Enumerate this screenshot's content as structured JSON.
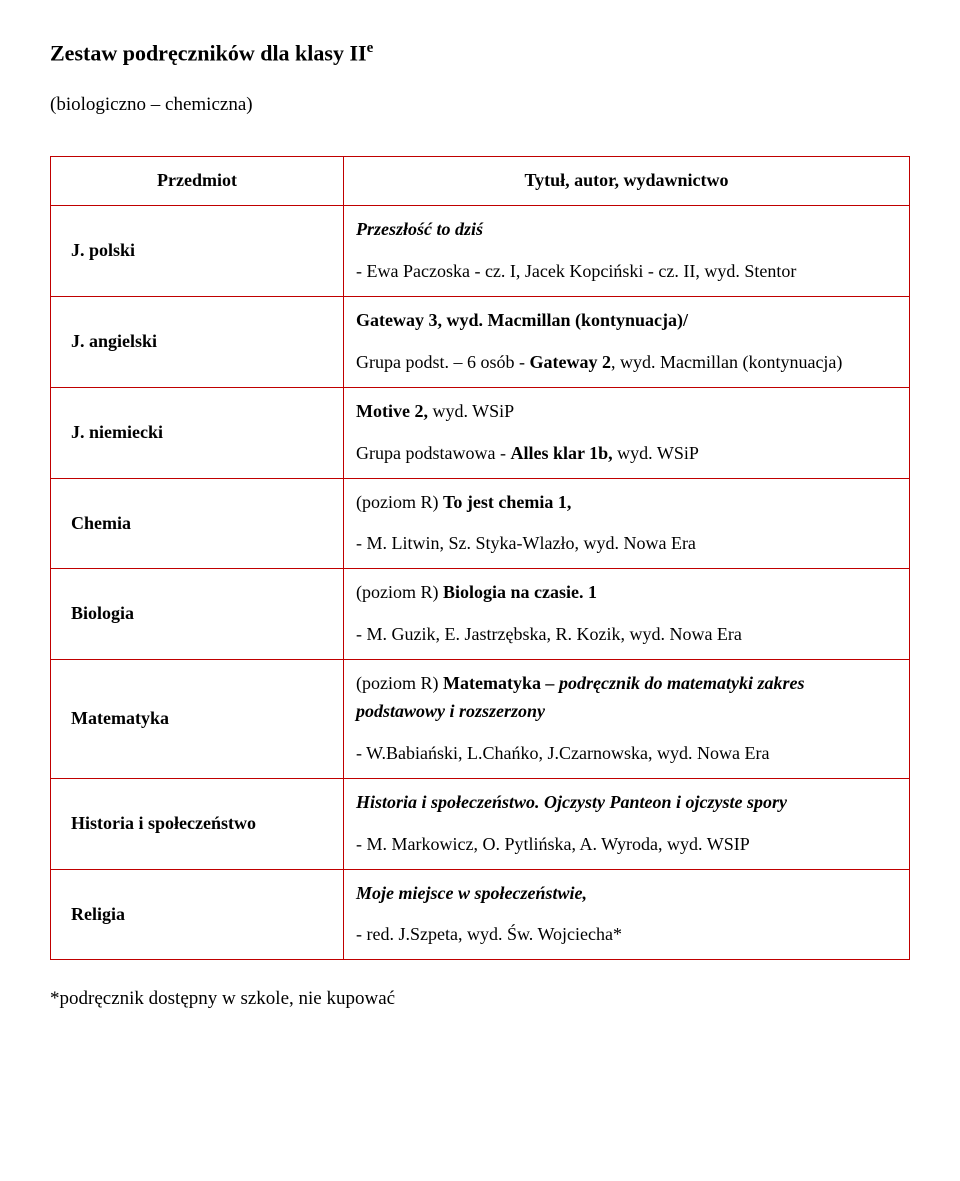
{
  "title_main": "Zestaw podręczników dla klasy II",
  "title_sup": "e",
  "subtitle": "(biologiczno – chemiczna)",
  "header_subject": "Przedmiot",
  "header_detail": "Tytuł, autor, wydawnictwo",
  "rows": [
    {
      "subject": "J. polski",
      "line1_bi": "Przeszłość to dziś",
      "line2": "- Ewa Paczoska - cz. I, Jacek Kopciński - cz. II, wyd. Stentor"
    },
    {
      "subject": "J. angielski",
      "line1_b": "Gateway 3, wyd. Macmillan (kontynuacja)/",
      "line2_pre": "Grupa podst. – 6 osób - ",
      "line2_b": "Gateway 2",
      "line2_post": ", wyd. Macmillan (kontynuacja)"
    },
    {
      "subject": "J. niemiecki",
      "line1_b": "Motive 2,",
      "line1_post": " wyd. WSiP",
      "line2_pre": "Grupa podstawowa - ",
      "line2_b": "Alles klar 1b,",
      "line2_post": " wyd. WSiP"
    },
    {
      "subject": "Chemia",
      "line1_pre": "(poziom R) ",
      "line1_b": "To jest chemia 1,",
      "line2": "- M. Litwin, Sz. Styka-Wlazło, wyd. Nowa Era"
    },
    {
      "subject": "Biologia",
      "line1_pre": "(poziom R) ",
      "line1_b": "Biologia na czasie. 1",
      "line2": "- M. Guzik, E. Jastrzębska, R. Kozik, wyd. Nowa Era"
    },
    {
      "subject": "Matematyka",
      "line1_pre": "(poziom R) ",
      "line1_b": "Matematyka",
      "line1_bi": " – podręcznik do matematyki zakres podstawowy i rozszerzony",
      "line2": "- W.Babiański, L.Chańko, J.Czarnowska, wyd. Nowa Era"
    },
    {
      "subject": "Historia i społeczeństwo",
      "line1_bi": "Historia i społeczeństwo. Ojczysty Panteon i ojczyste spory",
      "line2": "- M. Markowicz, O. Pytlińska, A. Wyroda, wyd. WSIP"
    },
    {
      "subject": "Religia",
      "line1_bi": "Moje miejsce w społeczeństwie,",
      "line2": "- red. J.Szpeta, wyd. Św. Wojciecha*"
    }
  ],
  "footnote": "*podręcznik dostępny w szkole, nie kupować"
}
